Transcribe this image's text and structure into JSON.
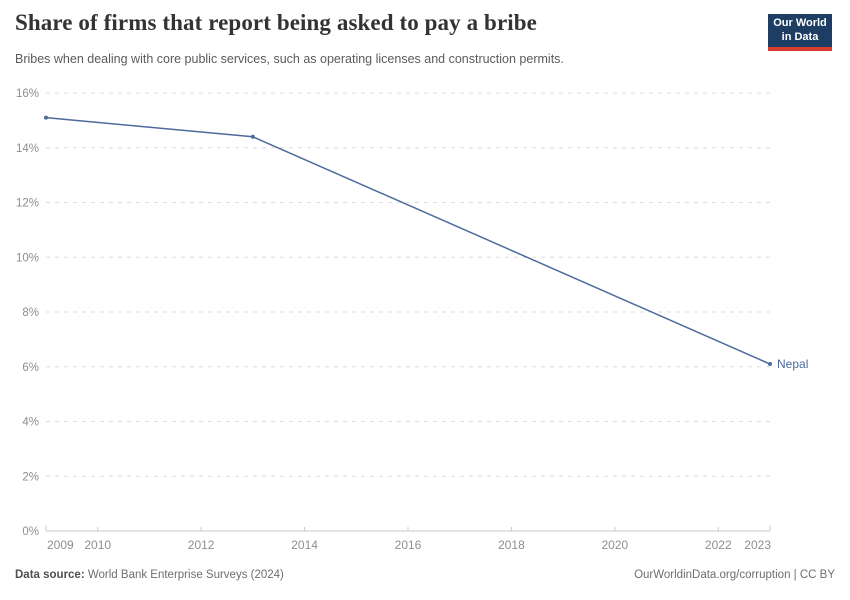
{
  "header": {
    "title": "Share of firms that report being asked to pay a bribe",
    "subtitle": "Bribes when dealing with core public services, such as operating licenses and construction permits.",
    "logo": {
      "line1": "Our World",
      "line2": "in Data",
      "bg_color": "#1d3d63",
      "accent_color": "#dc3d33"
    }
  },
  "chart_data": {
    "type": "line",
    "title": "Share of firms that report being asked to pay a bribe",
    "xlabel": "",
    "ylabel": "",
    "xlim": [
      2009,
      2023
    ],
    "ylim": [
      0,
      16
    ],
    "grid": "horizontal dashed",
    "legend_position": "end-of-line label",
    "x_ticks": [
      2009,
      2010,
      2012,
      2014,
      2016,
      2018,
      2020,
      2022,
      2023
    ],
    "x_minor_ticks": [
      2010,
      2012,
      2014,
      2016,
      2018,
      2020,
      2022
    ],
    "y_ticks": [
      0,
      2,
      4,
      6,
      8,
      10,
      12,
      14,
      16
    ],
    "y_tick_suffix": "%",
    "series": [
      {
        "name": "Nepal",
        "color": "#4c6a9c",
        "points": [
          {
            "x": 2009,
            "y": 15.1
          },
          {
            "x": 2013,
            "y": 14.4
          },
          {
            "x": 2023,
            "y": 6.1
          }
        ]
      }
    ],
    "colors": {
      "gridline": "#dcdcdc",
      "axis": "#c8c8c8",
      "tick_text": "#8e8e8e"
    }
  },
  "footer": {
    "source_label": "Data source:",
    "source_value": "World Bank Enterprise Surveys (2024)",
    "link": "OurWorldinData.org/corruption | CC BY"
  }
}
